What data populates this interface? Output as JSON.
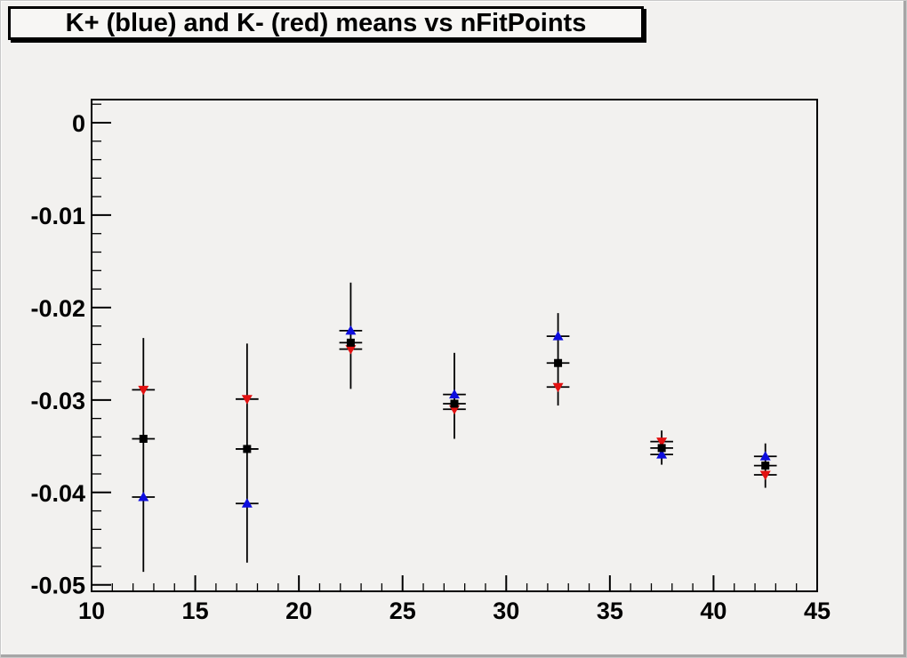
{
  "window": {
    "background": "#f2f1ef",
    "bevel_shadow": "#a6a6a6"
  },
  "title_box": {
    "text": "K+ (blue) and K- (red) means vs nFitPoints",
    "fill": "#f7f6f4",
    "border_color": "#000000",
    "shadow_color": "#000000",
    "text_color": "#000000"
  },
  "chart_data": {
    "type": "scatter",
    "title": "K+ (blue) and K- (red) means vs nFitPoints",
    "xlabel": "",
    "ylabel": "",
    "xlim": [
      10,
      45
    ],
    "ylim": [
      -0.0507,
      0.0025
    ],
    "grid": false,
    "legend_position": "none",
    "x_major_ticks": [
      10,
      15,
      20,
      25,
      30,
      35,
      40,
      45
    ],
    "x_tick_labels": [
      "10",
      "15",
      "20",
      "25",
      "30",
      "35",
      "40",
      "45"
    ],
    "x_minor_tick_step": 1,
    "y_major_ticks": [
      0,
      -0.01,
      -0.02,
      -0.03,
      -0.04,
      -0.05
    ],
    "y_tick_labels": [
      "0",
      "-0.01",
      "-0.02",
      "-0.03",
      "-0.04",
      "-0.05"
    ],
    "y_minor_tick_step": 0.002,
    "x": [
      12.5,
      17.5,
      22.5,
      27.5,
      32.5,
      37.5,
      42.5
    ],
    "x_error_halfwidth": 0.55,
    "series": [
      {
        "name": "K+ (blue)",
        "marker": "triangle-up",
        "color": "#0d0ddd",
        "values": [
          -0.0405,
          -0.0412,
          -0.0225,
          -0.0294,
          -0.0231,
          -0.0359,
          -0.0361
        ]
      },
      {
        "name": "K- (red)",
        "marker": "triangle-down",
        "color": "#e21111",
        "values": [
          -0.0289,
          -0.0299,
          -0.0245,
          -0.031,
          -0.0286,
          -0.0345,
          -0.0381
        ]
      },
      {
        "name": "black squares",
        "marker": "square",
        "color": "#000000",
        "values": [
          -0.0342,
          -0.0353,
          -0.0238,
          -0.0304,
          -0.026,
          -0.0352,
          -0.0371
        ]
      }
    ],
    "error_bars": {
      "top": [
        -0.0233,
        -0.0239,
        -0.0173,
        -0.0249,
        -0.0206,
        -0.0333,
        -0.0347
      ],
      "bottom": [
        -0.0486,
        -0.0476,
        -0.0288,
        -0.0342,
        -0.0306,
        -0.037,
        -0.0395
      ]
    }
  }
}
